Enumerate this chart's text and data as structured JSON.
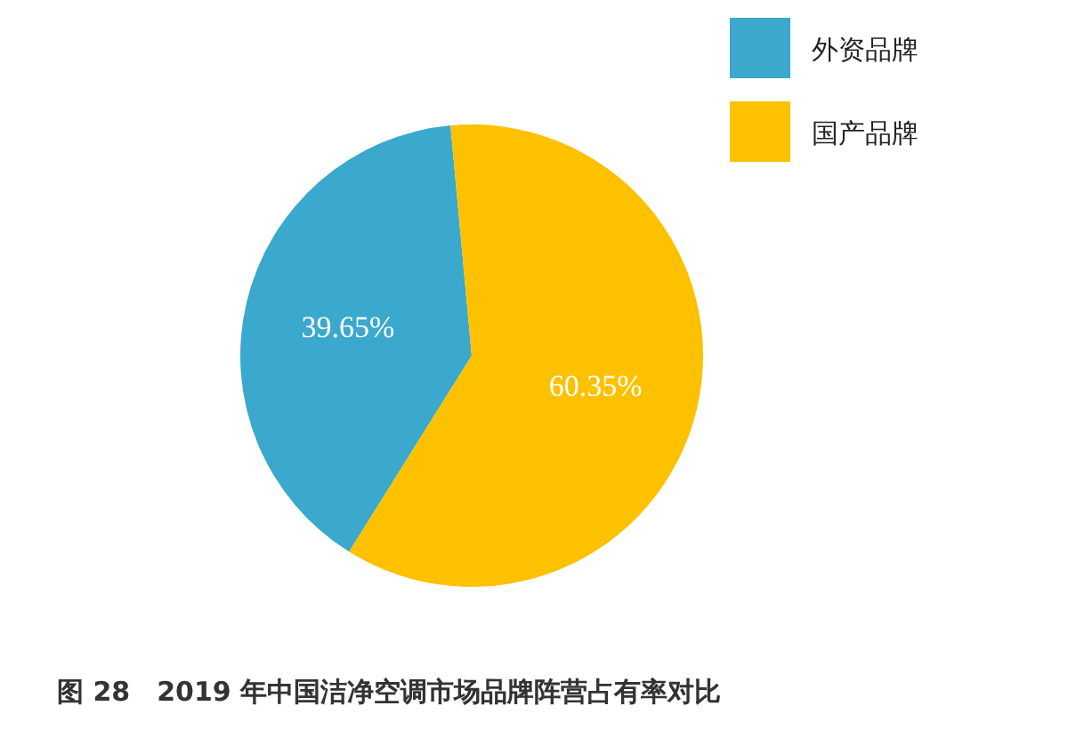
{
  "chart_data": {
    "type": "pie",
    "categories": [
      "外资品牌",
      "国产品牌"
    ],
    "values": [
      39.65,
      60.35
    ],
    "colors": [
      "#3ba8cd",
      "#fdc100"
    ],
    "value_labels": [
      "39.65%",
      "60.35%"
    ],
    "legend": "top right",
    "annotations": [
      "图 28　2019 年中国洁净空调市场品牌阵营占有率对比"
    ]
  }
}
